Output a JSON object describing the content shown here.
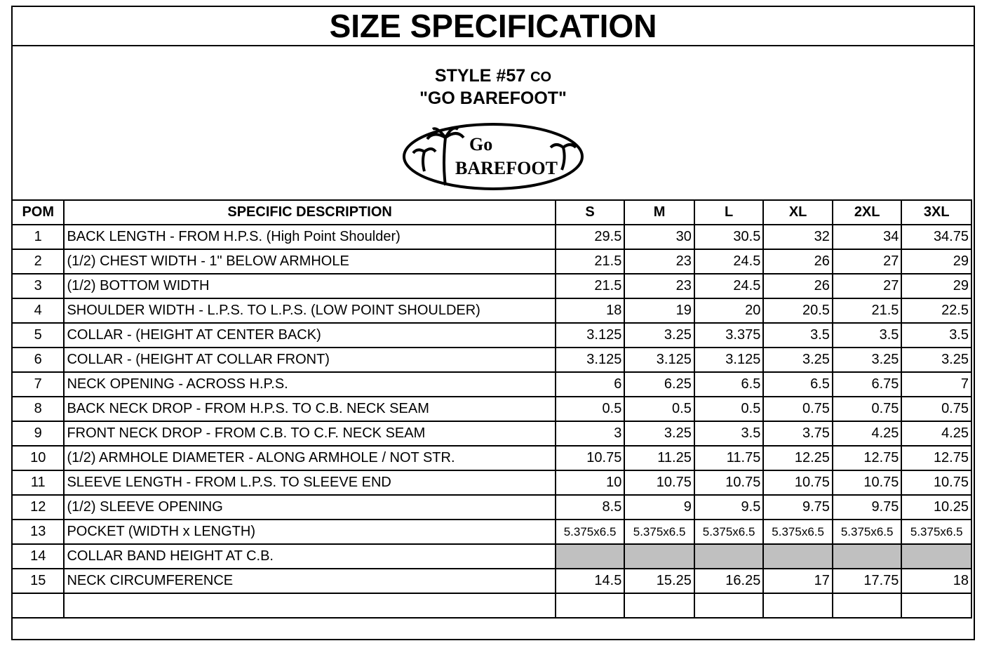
{
  "title": "SIZE SPECIFICATION",
  "style": {
    "number": "STYLE #57",
    "suffix": "CO",
    "name": "\"GO BAREFOOT\"",
    "logo_text": "GO BAREFOOT"
  },
  "headers": [
    "POM",
    "SPECIFIC DESCRIPTION",
    "S",
    "M",
    "L",
    "XL",
    "2XL",
    "3XL"
  ],
  "shaded_color": "#c0c0c0",
  "rows": [
    {
      "pom": "1",
      "desc": "BACK LENGTH - FROM H.P.S. (High Point Shoulder)",
      "values": [
        "29.5",
        "30",
        "30.5",
        "32",
        "34",
        "34.75"
      ]
    },
    {
      "pom": "2",
      "desc": "(1/2) CHEST WIDTH - 1\" BELOW ARMHOLE",
      "values": [
        "21.5",
        "23",
        "24.5",
        "26",
        "27",
        "29"
      ]
    },
    {
      "pom": "3",
      "desc": "(1/2) BOTTOM WIDTH",
      "values": [
        "21.5",
        "23",
        "24.5",
        "26",
        "27",
        "29"
      ]
    },
    {
      "pom": "4",
      "desc": "SHOULDER WIDTH - L.P.S. TO L.P.S. (LOW POINT SHOULDER)",
      "values": [
        "18",
        "19",
        "20",
        "20.5",
        "21.5",
        "22.5"
      ]
    },
    {
      "pom": "5",
      "desc": "COLLAR - (HEIGHT AT CENTER BACK)",
      "values": [
        "3.125",
        "3.25",
        "3.375",
        "3.5",
        "3.5",
        "3.5"
      ]
    },
    {
      "pom": "6",
      "desc": "COLLAR - (HEIGHT AT COLLAR FRONT)",
      "values": [
        "3.125",
        "3.125",
        "3.125",
        "3.25",
        "3.25",
        "3.25"
      ]
    },
    {
      "pom": "7",
      "desc": "NECK OPENING - ACROSS H.P.S.",
      "values": [
        "6",
        "6.25",
        "6.5",
        "6.5",
        "6.75",
        "7"
      ]
    },
    {
      "pom": "8",
      "desc": "BACK NECK DROP - FROM H.P.S. TO C.B. NECK SEAM",
      "values": [
        "0.5",
        "0.5",
        "0.5",
        "0.75",
        "0.75",
        "0.75"
      ]
    },
    {
      "pom": "9",
      "desc": "FRONT NECK DROP - FROM C.B. TO C.F. NECK SEAM",
      "values": [
        "3",
        "3.25",
        "3.5",
        "3.75",
        "4.25",
        "4.25"
      ]
    },
    {
      "pom": "10",
      "desc": "(1/2) ARMHOLE DIAMETER - ALONG ARMHOLE / NOT STR.",
      "values": [
        "10.75",
        "11.25",
        "11.75",
        "12.25",
        "12.75",
        "12.75"
      ]
    },
    {
      "pom": "11",
      "desc": "SLEEVE LENGTH - FROM L.P.S. TO SLEEVE END",
      "values": [
        "10",
        "10.75",
        "10.75",
        "10.75",
        "10.75",
        "10.75"
      ]
    },
    {
      "pom": "12",
      "desc": "(1/2) SLEEVE OPENING",
      "values": [
        "8.5",
        "9",
        "9.5",
        "9.75",
        "9.75",
        "10.25"
      ]
    },
    {
      "pom": "13",
      "desc": "POCKET (WIDTH x LENGTH)",
      "values": [
        "5.375x6.5",
        "5.375x6.5",
        "5.375x6.5",
        "5.375x6.5",
        "5.375x6.5",
        "5.375x6.5"
      ]
    },
    {
      "pom": "14",
      "desc": "COLLAR BAND HEIGHT AT C.B.",
      "values": [
        "",
        "",
        "",
        "",
        "",
        ""
      ],
      "shaded": true
    },
    {
      "pom": "15",
      "desc": "NECK CIRCUMFERENCE",
      "values": [
        "14.5",
        "15.25",
        "16.25",
        "17",
        "17.75",
        "18"
      ]
    },
    {
      "pom": "",
      "desc": "",
      "values": [
        "",
        "",
        "",
        "",
        "",
        ""
      ]
    }
  ]
}
